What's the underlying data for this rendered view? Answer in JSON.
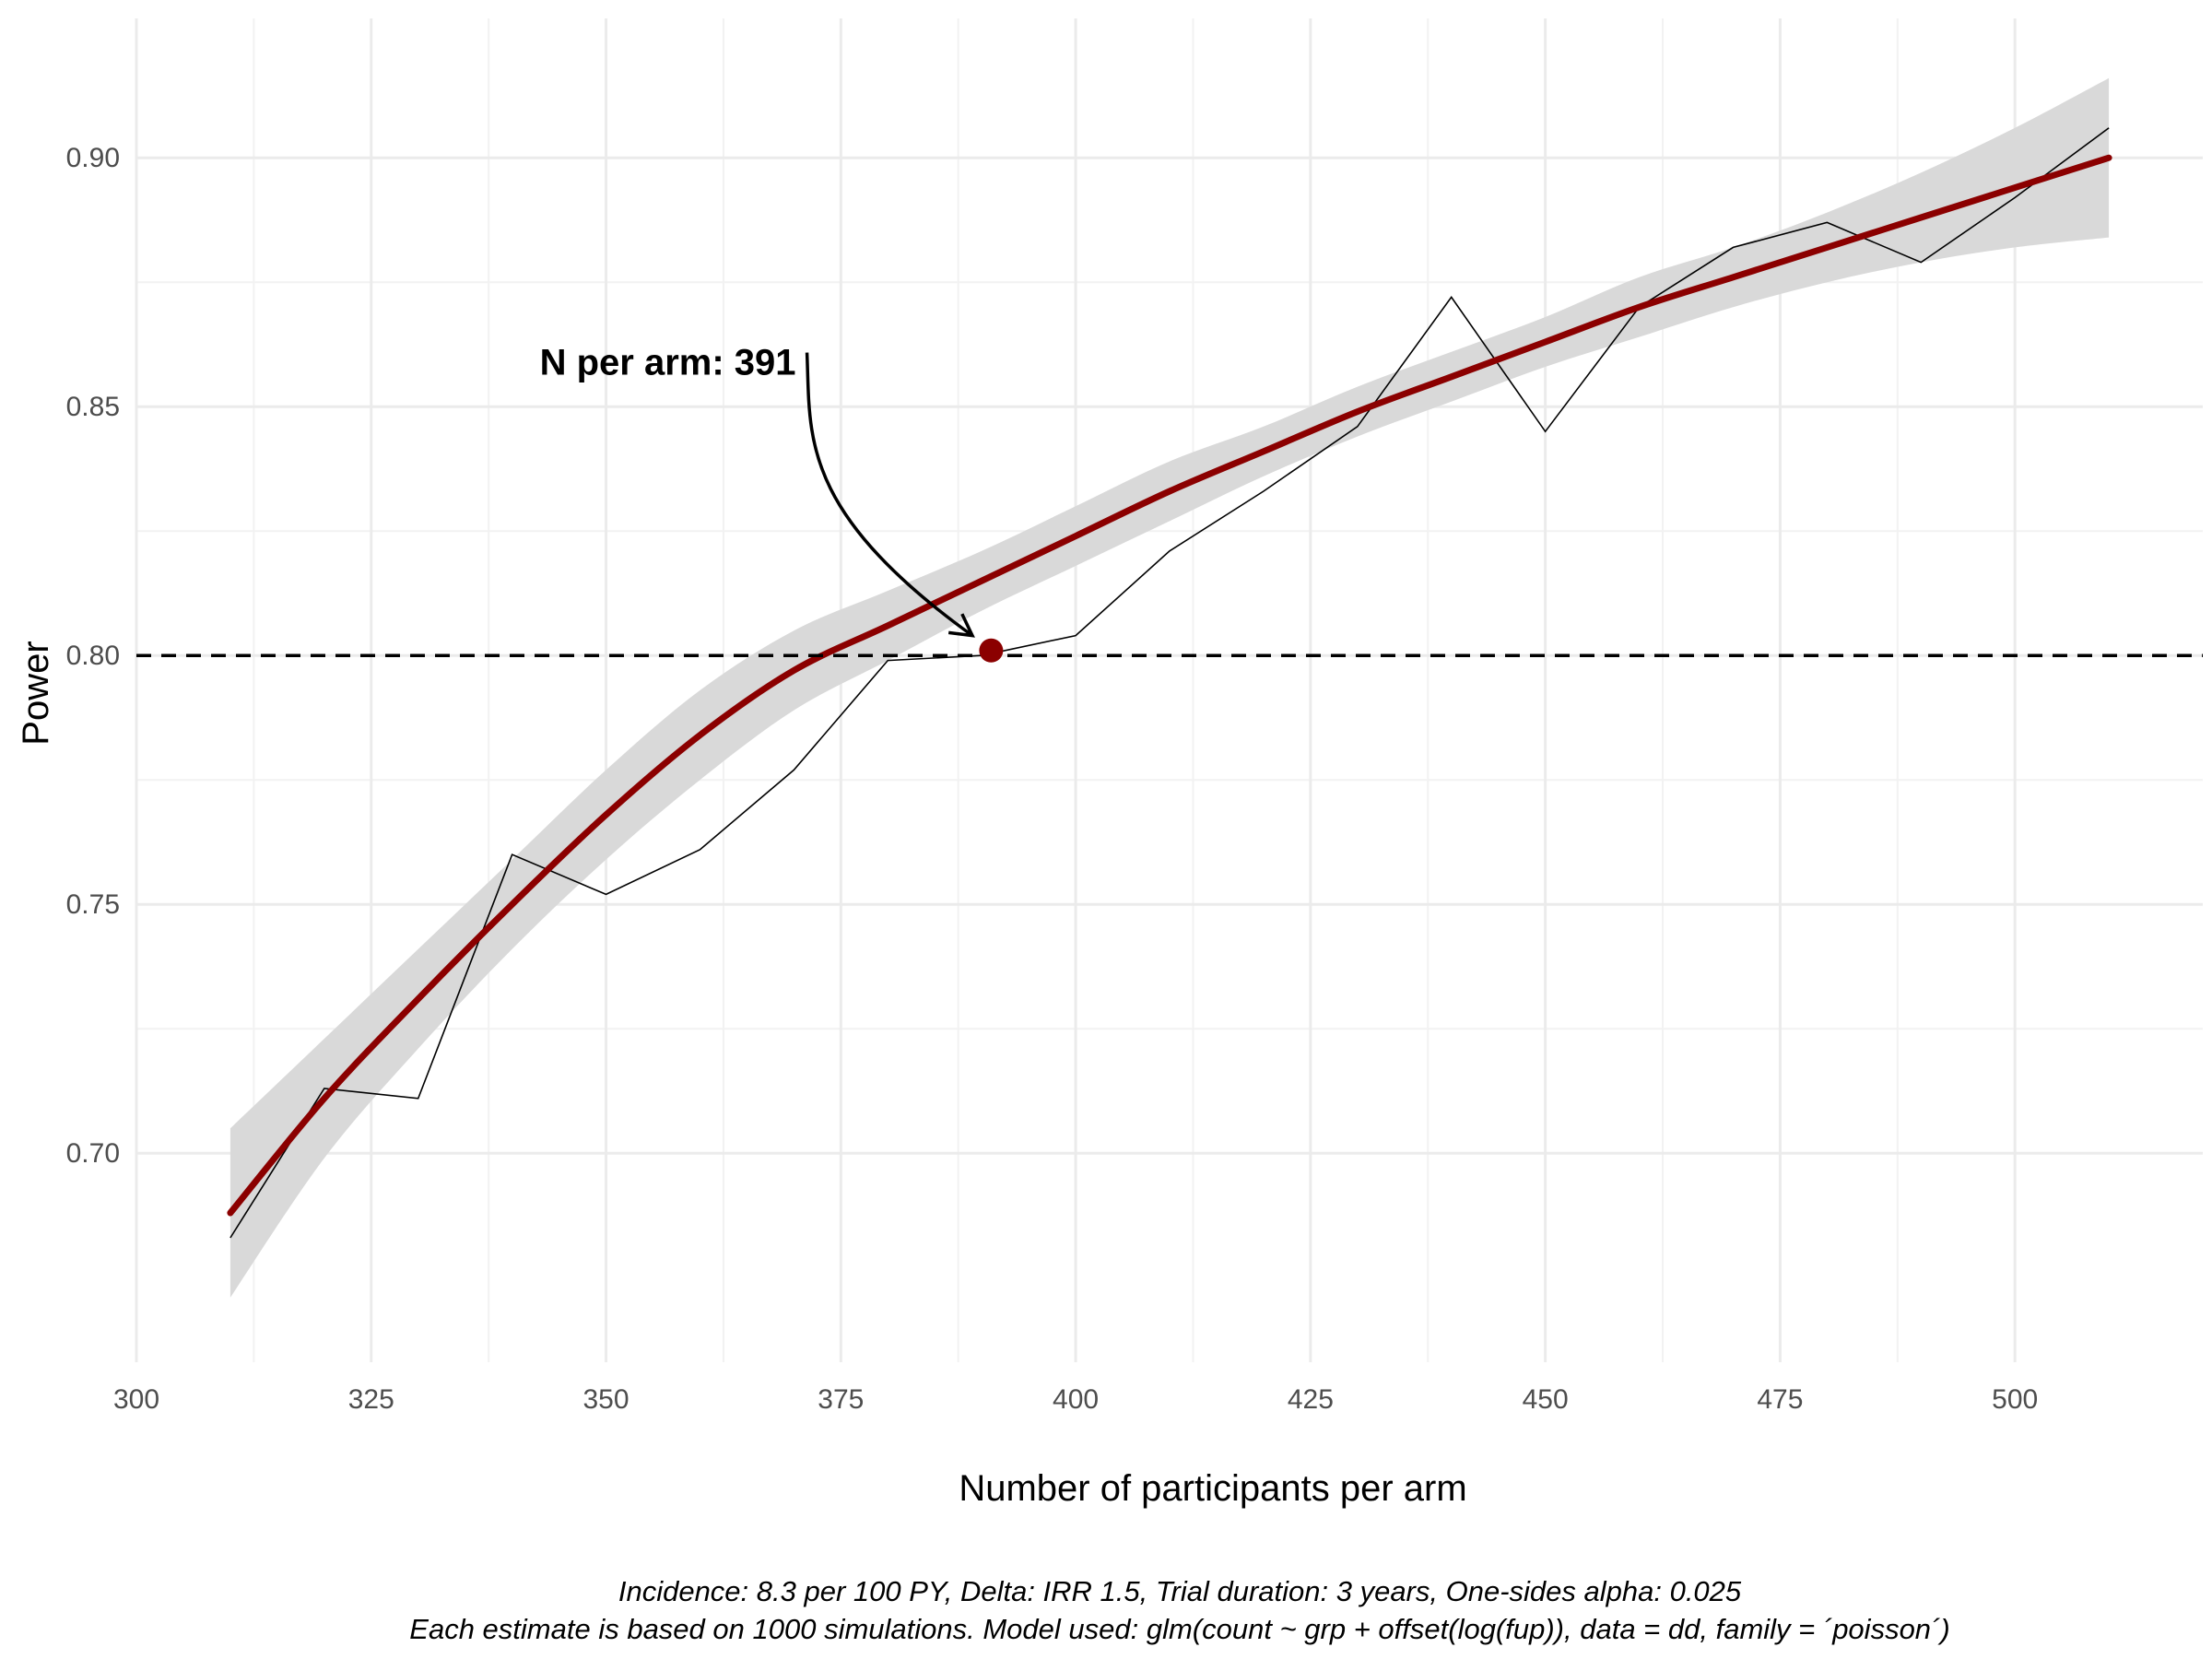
{
  "chart_data": {
    "type": "line",
    "xlabel": "Number of participants per arm",
    "ylabel": "Power",
    "xlim": [
      300,
      520
    ],
    "ylim": [
      0.658,
      0.928
    ],
    "x_ticks": [
      300,
      325,
      350,
      375,
      400,
      425,
      450,
      475,
      500
    ],
    "x_tick_labels": [
      "300",
      "325",
      "350",
      "375",
      "400",
      "425",
      "450",
      "475",
      "500"
    ],
    "y_ticks": [
      0.7,
      0.75,
      0.8,
      0.85,
      0.9
    ],
    "y_tick_labels": [
      "0.70",
      "0.75",
      "0.80",
      "0.85",
      "0.90"
    ],
    "grid": true,
    "reference_line": {
      "y": 0.8,
      "style": "dashed",
      "color": "#000000"
    },
    "series": [
      {
        "role": "simulated",
        "color": "#000000",
        "x": [
          310,
          320,
          330,
          340,
          350,
          360,
          370,
          380,
          390,
          400,
          410,
          420,
          430,
          440,
          450,
          460,
          470,
          480,
          490,
          500,
          510
        ],
        "y": [
          0.683,
          0.713,
          0.711,
          0.76,
          0.752,
          0.761,
          0.777,
          0.799,
          0.8,
          0.804,
          0.821,
          0.833,
          0.846,
          0.872,
          0.845,
          0.87,
          0.882,
          0.887,
          0.879,
          0.892,
          0.906
        ]
      },
      {
        "role": "smooth",
        "color": "#8b0000",
        "x": [
          310,
          320,
          330,
          340,
          350,
          360,
          370,
          380,
          390,
          400,
          410,
          420,
          430,
          440,
          450,
          460,
          470,
          480,
          490,
          500,
          510
        ],
        "y": [
          0.688,
          0.711,
          0.731,
          0.75,
          0.768,
          0.784,
          0.797,
          0.806,
          0.815,
          0.824,
          0.833,
          0.841,
          0.849,
          0.856,
          0.863,
          0.87,
          0.876,
          0.882,
          0.888,
          0.894,
          0.9
        ],
        "ci_lower": [
          0.671,
          0.699,
          0.721,
          0.741,
          0.759,
          0.775,
          0.789,
          0.799,
          0.809,
          0.818,
          0.827,
          0.836,
          0.844,
          0.851,
          0.858,
          0.864,
          0.87,
          0.875,
          0.879,
          0.882,
          0.884
        ],
        "ci_upper": [
          0.705,
          0.723,
          0.741,
          0.759,
          0.777,
          0.793,
          0.805,
          0.813,
          0.821,
          0.83,
          0.839,
          0.846,
          0.854,
          0.861,
          0.868,
          0.876,
          0.882,
          0.889,
          0.897,
          0.906,
          0.916
        ],
        "ci_color": "#d9d9d9"
      }
    ],
    "highlight_point": {
      "x": 391,
      "y": 0.801,
      "color": "#8b0000"
    },
    "annotation": {
      "text": "N per arm: 391",
      "text_x": 371,
      "text_y": 0.859,
      "arrow_to_x": 389,
      "arrow_to_y": 0.804
    },
    "caption_lines": [
      "Incidence: 8.3 per 100 PY, Delta: IRR 1.5, Trial duration: 3 years, One-sides alpha: 0.025",
      "Each estimate is based on 1000 simulations. Model used: glm(count ~ grp + offset(log(fup)), data = dd, family = ´poisson´)"
    ]
  }
}
